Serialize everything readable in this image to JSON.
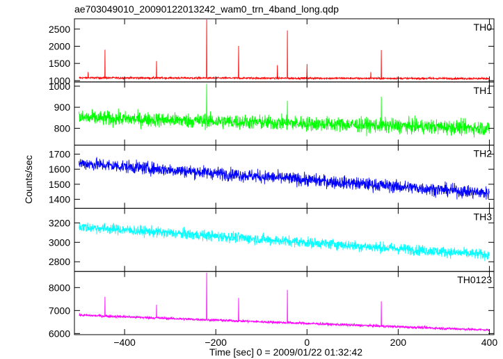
{
  "chart_data": {
    "type": "line",
    "title": "ae703049010_20090122013242_wam0_trn_4band_long.qdp",
    "xlabel": "Time [sec] 0 = 2009/01/22 01:32:42",
    "ylabel": "Counts/sec",
    "xlim": [
      -510,
      410
    ],
    "xticks": [
      -400,
      -200,
      0,
      200,
      400
    ],
    "grid": false,
    "panels": [
      {
        "label": "TH0",
        "color": "#ff0000",
        "ylim": [
          960,
          2800
        ],
        "yticks": [
          1000,
          1500,
          2000,
          2500
        ],
        "baseline_start": 1080,
        "baseline_end": 1060,
        "noise": 35,
        "spikes": [
          {
            "x": -480,
            "y": 1250
          },
          {
            "x": -443,
            "y": 1900
          },
          {
            "x": -330,
            "y": 1570
          },
          {
            "x": -220,
            "y": 2780
          },
          {
            "x": -150,
            "y": 2010
          },
          {
            "x": -65,
            "y": 1450
          },
          {
            "x": -43,
            "y": 2460
          },
          {
            "x": 0,
            "y": 1480
          },
          {
            "x": 140,
            "y": 1250
          },
          {
            "x": 163,
            "y": 1890
          }
        ]
      },
      {
        "label": "TH1",
        "color": "#00ff00",
        "ylim": [
          720,
          1020
        ],
        "yticks": [
          800,
          900,
          1000
        ],
        "baseline_start": 850,
        "baseline_end": 800,
        "noise": 45,
        "spikes": [
          {
            "x": -220,
            "y": 1010
          },
          {
            "x": -43,
            "y": 930
          },
          {
            "x": 163,
            "y": 950
          }
        ]
      },
      {
        "label": "TH2",
        "color": "#0000ff",
        "ylim": [
          1340,
          1760
        ],
        "yticks": [
          1400,
          1500,
          1600,
          1700
        ],
        "baseline_start": 1640,
        "baseline_end": 1440,
        "noise": 55,
        "spikes": []
      },
      {
        "label": "TH3",
        "color": "#00ffff",
        "ylim": [
          2700,
          3350
        ],
        "yticks": [
          2800,
          3000,
          3200
        ],
        "baseline_start": 3160,
        "baseline_end": 2870,
        "noise": 70,
        "spikes": []
      },
      {
        "label": "TH0123",
        "color": "#ff00ff",
        "ylim": [
          5950,
          8700
        ],
        "yticks": [
          6000,
          7000,
          8000
        ],
        "baseline_start": 6800,
        "baseline_end": 6150,
        "noise": 75,
        "spikes": [
          {
            "x": -443,
            "y": 7600
          },
          {
            "x": -330,
            "y": 7250
          },
          {
            "x": -220,
            "y": 8650
          },
          {
            "x": -150,
            "y": 7550
          },
          {
            "x": -43,
            "y": 7900
          },
          {
            "x": 163,
            "y": 7400
          }
        ]
      }
    ]
  }
}
